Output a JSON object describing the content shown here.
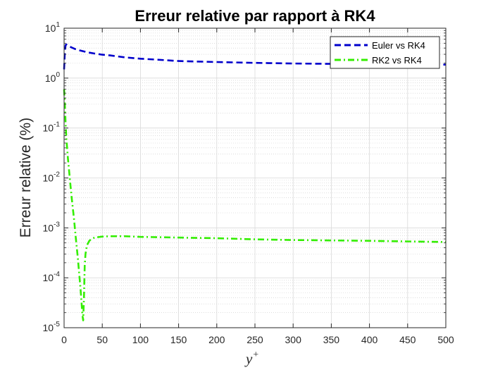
{
  "chart_data": {
    "type": "line",
    "title": "Erreur relative par rapport à RK4",
    "xlabel": "y",
    "xlabel_sup": "+",
    "ylabel": "Erreur relative (%)",
    "xlim": [
      0,
      500
    ],
    "ylim": [
      1e-05,
      10
    ],
    "yscale": "log",
    "grid": true,
    "minor_grid": true,
    "legend_position": "top-right",
    "x_ticks": [
      0,
      50,
      100,
      150,
      200,
      250,
      300,
      350,
      400,
      450,
      500
    ],
    "y_ticks": [
      {
        "base": "10",
        "exp": "-5",
        "value": 1e-05
      },
      {
        "base": "10",
        "exp": "-4",
        "value": 0.0001
      },
      {
        "base": "10",
        "exp": "-3",
        "value": 0.001
      },
      {
        "base": "10",
        "exp": "-2",
        "value": 0.01
      },
      {
        "base": "10",
        "exp": "-1",
        "value": 0.1
      },
      {
        "base": "10",
        "exp": "0",
        "value": 1
      },
      {
        "base": "10",
        "exp": "1",
        "value": 10
      }
    ],
    "series": [
      {
        "name": "Euler vs RK4",
        "color": "#0000cc",
        "style": "dashed",
        "x": [
          0,
          1,
          2,
          3,
          4,
          6,
          10,
          15,
          20,
          30,
          40,
          50,
          60,
          80,
          100,
          120,
          150,
          200,
          250,
          300,
          350,
          400,
          450,
          500
        ],
        "y": [
          1.5,
          3.5,
          4.6,
          4.7,
          4.6,
          4.4,
          4.1,
          3.8,
          3.6,
          3.3,
          3.1,
          2.95,
          2.85,
          2.6,
          2.45,
          2.35,
          2.2,
          2.1,
          2.02,
          1.96,
          1.93,
          1.9,
          1.88,
          1.86
        ]
      },
      {
        "name": "RK2 vs RK4",
        "color": "#33ee00",
        "style": "dash-dot",
        "x": [
          0,
          1,
          2,
          3,
          5,
          8,
          10,
          13,
          15,
          18,
          20,
          22,
          24,
          25,
          26,
          27,
          28,
          30,
          33,
          36,
          40,
          50,
          60,
          70,
          80,
          100,
          150,
          200,
          250,
          300,
          400,
          500
        ],
        "y": [
          0.6,
          0.3,
          0.12,
          0.06,
          0.025,
          0.008,
          0.004,
          0.0015,
          0.0007,
          0.00025,
          0.00011,
          5e-05,
          1.8e-05,
          1.4e-05,
          4e-05,
          0.00018,
          0.0003,
          0.00045,
          0.00055,
          0.0006,
          0.00064,
          0.00067,
          0.00068,
          0.00068,
          0.00068,
          0.00066,
          0.00064,
          0.00062,
          0.00059,
          0.00057,
          0.00055,
          0.00052
        ]
      }
    ]
  }
}
